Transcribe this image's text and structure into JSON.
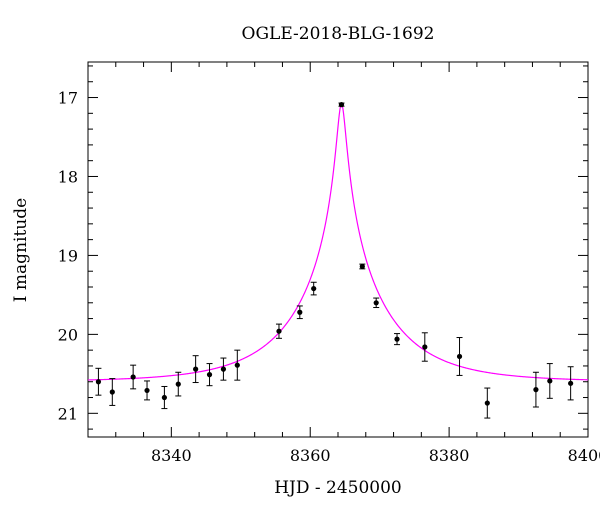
{
  "chart_data": {
    "type": "scatter",
    "title": "OGLE-2018-BLG-1692",
    "xlabel": "HJD - 2450000",
    "ylabel": "I magnitude",
    "xlim": [
      8328,
      8400
    ],
    "ylim": [
      21.3,
      16.55
    ],
    "y_inverted": true,
    "grid": false,
    "x_ticks": [
      8340,
      8360,
      8380,
      8400
    ],
    "y_ticks": [
      17,
      18,
      19,
      20,
      21
    ],
    "x_tick_labels": [
      "8340",
      "8360",
      "8380",
      "8400"
    ],
    "y_tick_labels": [
      "17",
      "18",
      "19",
      "20",
      "21"
    ],
    "points": [
      {
        "x": 8329.5,
        "y": 20.6,
        "err": 0.17
      },
      {
        "x": 8331.5,
        "y": 20.73,
        "err": 0.17
      },
      {
        "x": 8334.5,
        "y": 20.54,
        "err": 0.15
      },
      {
        "x": 8336.5,
        "y": 20.71,
        "err": 0.12
      },
      {
        "x": 8339.0,
        "y": 20.8,
        "err": 0.14
      },
      {
        "x": 8341.0,
        "y": 20.63,
        "err": 0.15
      },
      {
        "x": 8343.5,
        "y": 20.44,
        "err": 0.17
      },
      {
        "x": 8345.5,
        "y": 20.51,
        "err": 0.14
      },
      {
        "x": 8347.5,
        "y": 20.44,
        "err": 0.14
      },
      {
        "x": 8349.5,
        "y": 20.39,
        "err": 0.19
      },
      {
        "x": 8355.5,
        "y": 19.96,
        "err": 0.09
      },
      {
        "x": 8358.5,
        "y": 19.72,
        "err": 0.08
      },
      {
        "x": 8360.5,
        "y": 19.42,
        "err": 0.08
      },
      {
        "x": 8364.5,
        "y": 17.09,
        "err": 0.02
      },
      {
        "x": 8367.5,
        "y": 19.14,
        "err": 0.03
      },
      {
        "x": 8369.5,
        "y": 19.6,
        "err": 0.06
      },
      {
        "x": 8372.5,
        "y": 20.06,
        "err": 0.07
      },
      {
        "x": 8376.5,
        "y": 20.16,
        "err": 0.18
      },
      {
        "x": 8381.5,
        "y": 20.28,
        "err": 0.24
      },
      {
        "x": 8385.5,
        "y": 20.87,
        "err": 0.19
      },
      {
        "x": 8392.5,
        "y": 20.7,
        "err": 0.22
      },
      {
        "x": 8394.5,
        "y": 20.59,
        "err": 0.22
      },
      {
        "x": 8397.5,
        "y": 20.62,
        "err": 0.21
      }
    ],
    "model": {
      "type": "microlensing-fit",
      "t0": 8364.5,
      "tE": 12,
      "u0": 0.05,
      "baseline": 20.6,
      "peak": 17.08
    },
    "colors": {
      "model": "#ff00ff",
      "points": "#000000"
    }
  }
}
